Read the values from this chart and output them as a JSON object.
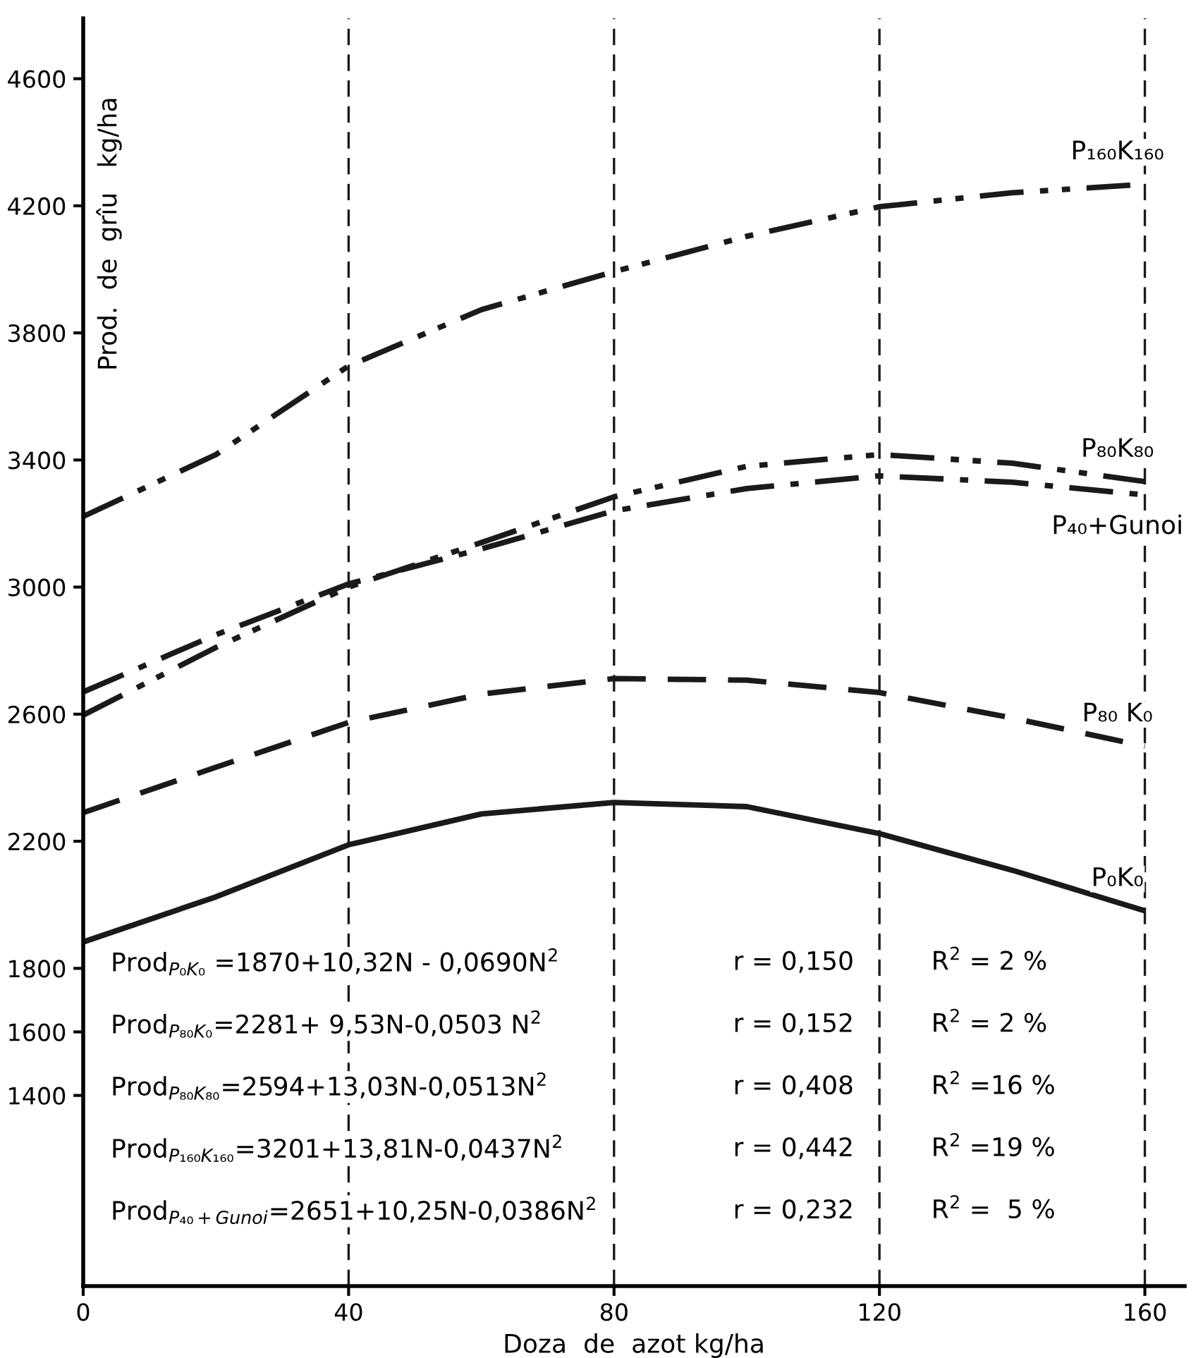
{
  "chart_data": {
    "type": "line",
    "xlabel": "Doza  de  azot kg/ha",
    "ylabel": "Prod.  de  grîu   kg/ha",
    "x": [
      0,
      20,
      40,
      60,
      80,
      100,
      120,
      140,
      160
    ],
    "xlim": [
      0,
      166
    ],
    "xticks": [
      0,
      40,
      80,
      120,
      160
    ],
    "ylim": [
      800,
      4790
    ],
    "yticks": [
      1400,
      1600,
      1800,
      2200,
      2600,
      3000,
      3400,
      3800,
      4200,
      4600
    ],
    "grid": false,
    "legend": false,
    "series": [
      {
        "name": "P₁₆₀K₁₆₀",
        "color": "#1a1a1a",
        "line_style": "dashdotdot",
        "values": [
          3222,
          3417,
          3696,
          3873,
          3993,
          4104,
          4197,
          4241,
          4268
        ]
      },
      {
        "name": "P₈₀K₈₀",
        "color": "#1a1a1a",
        "line_style": "dashdotdot",
        "values": [
          2597,
          2810,
          3000,
          3140,
          3284,
          3380,
          3417,
          3390,
          3332
        ]
      },
      {
        "name": "P₄₀+Gunoi",
        "color": "#1a1a1a",
        "line_style": "dashdot",
        "values": [
          2670,
          2850,
          3010,
          3120,
          3240,
          3310,
          3350,
          3330,
          3290
        ]
      },
      {
        "name": "P₈₀ K₀",
        "color": "#1a1a1a",
        "line_style": "dashed",
        "values": [
          2290,
          2433,
          2574,
          2663,
          2712,
          2707,
          2668,
          2588,
          2499
        ]
      },
      {
        "name": "P₀K₀",
        "color": "#1a1a1a",
        "line_style": "solid",
        "values": [
          1883,
          2025,
          2189,
          2286,
          2322,
          2309,
          2224,
          2109,
          1981
        ]
      }
    ],
    "ref_lines": [
      {
        "axis": "x",
        "value": 40,
        "line_style": "dashed",
        "color": "#1a1a1a"
      },
      {
        "axis": "x",
        "value": 80,
        "line_style": "dashed",
        "color": "#1a1a1a"
      },
      {
        "axis": "x",
        "value": 120,
        "line_style": "dashed",
        "color": "#1a1a1a"
      },
      {
        "axis": "x",
        "value": 160,
        "line_style": "dashed",
        "color": "#1a1a1a"
      }
    ],
    "annotations": [
      "Prod$_{P₀K₀}$ =1870+10,32N - 0,0690N$^{2}$",
      "Prod$_{P₈₀K₀}$=2281+ 9,53N-0,0503 N$^{2}$",
      "Prod$_{P₈₀K₈₀}$=2594+13,03N-0,0513N$^{2}$",
      "Prod$_{P₁₆₀K₁₆₀}$=3201+13,81N-0,0437N$^{2}$",
      "Prod$_{P₄₀+Gunoi}$=2651+10,25N-0,0386N$^{2}$",
      "r = 0,150",
      "r = 0,152",
      "r = 0,408",
      "r = 0,442",
      "r = 0,232",
      "R$^{2}$ = 2 %",
      "R$^{2}$ = 2 %",
      "R$^{2}$ =16 %",
      "R$^{2}$ =19 %",
      "R$^{2}$ =  5 %"
    ]
  }
}
